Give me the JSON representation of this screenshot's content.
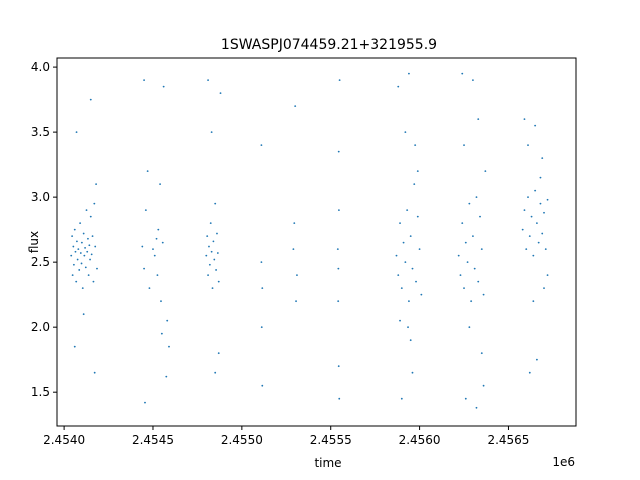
{
  "chart_data": {
    "type": "scatter",
    "title": "1SWASPJ074459.21+321955.9",
    "xlabel": "time",
    "ylabel": "flux",
    "x_offset_label": "1e6",
    "xlim": [
      2453960,
      2456880
    ],
    "ylim": [
      1.24,
      4.07
    ],
    "x_ticks": [
      2454000,
      2454500,
      2455000,
      2455500,
      2456000,
      2456500
    ],
    "x_tick_labels": [
      "2.4540",
      "2.4545",
      "2.4550",
      "2.4555",
      "2.4560",
      "2.4565"
    ],
    "y_ticks": [
      1.5,
      2.0,
      2.5,
      3.0,
      3.5,
      4.0
    ],
    "y_tick_labels": [
      "1.5",
      "2.0",
      "2.5",
      "3.0",
      "3.5",
      "4.0"
    ],
    "grid": false,
    "marker_color": "#1f77b4",
    "series": [
      {
        "points": [
          [
            2454040,
            2.55
          ],
          [
            2454045,
            2.7
          ],
          [
            2454048,
            2.4
          ],
          [
            2454052,
            2.62
          ],
          [
            2454055,
            2.48
          ],
          [
            2454060,
            2.75
          ],
          [
            2454064,
            2.58
          ],
          [
            2454068,
            2.35
          ],
          [
            2454072,
            2.66
          ],
          [
            2454076,
            2.52
          ],
          [
            2454080,
            2.6
          ],
          [
            2454085,
            2.44
          ],
          [
            2454090,
            2.8
          ],
          [
            2454094,
            2.57
          ],
          [
            2454098,
            2.49
          ],
          [
            2454100,
            2.65
          ],
          [
            2454105,
            2.3
          ],
          [
            2454110,
            2.72
          ],
          [
            2454114,
            2.55
          ],
          [
            2454118,
            2.61
          ],
          [
            2454122,
            2.46
          ],
          [
            2454126,
            2.9
          ],
          [
            2454130,
            2.58
          ],
          [
            2454134,
            2.68
          ],
          [
            2454138,
            2.4
          ],
          [
            2454142,
            2.63
          ],
          [
            2454146,
            2.52
          ],
          [
            2454150,
            2.85
          ],
          [
            2454155,
            2.56
          ],
          [
            2454160,
            2.7
          ],
          [
            2454165,
            2.35
          ],
          [
            2454170,
            2.95
          ],
          [
            2454175,
            2.62
          ],
          [
            2454180,
            3.1
          ],
          [
            2454185,
            2.45
          ],
          [
            2454060,
            1.85
          ],
          [
            2454070,
            3.5
          ],
          [
            2454150,
            3.75
          ],
          [
            2454172,
            1.65
          ],
          [
            2454110,
            2.1
          ],
          [
            2454440,
            2.62
          ],
          [
            2454450,
            2.45
          ],
          [
            2454460,
            2.9
          ],
          [
            2454470,
            3.2
          ],
          [
            2454480,
            2.3
          ],
          [
            2454450,
            3.9
          ],
          [
            2454455,
            1.42
          ],
          [
            2454500,
            2.6
          ],
          [
            2454510,
            2.55
          ],
          [
            2454520,
            2.68
          ],
          [
            2454525,
            2.4
          ],
          [
            2454530,
            2.75
          ],
          [
            2454540,
            3.1
          ],
          [
            2454545,
            2.2
          ],
          [
            2454550,
            1.95
          ],
          [
            2454555,
            2.65
          ],
          [
            2454560,
            3.85
          ],
          [
            2454575,
            1.62
          ],
          [
            2454580,
            2.05
          ],
          [
            2454590,
            1.85
          ],
          [
            2454800,
            2.55
          ],
          [
            2454805,
            2.7
          ],
          [
            2454810,
            2.4
          ],
          [
            2454815,
            2.62
          ],
          [
            2454820,
            2.48
          ],
          [
            2454825,
            2.8
          ],
          [
            2454830,
            2.58
          ],
          [
            2454835,
            2.3
          ],
          [
            2454840,
            2.66
          ],
          [
            2454845,
            2.52
          ],
          [
            2454850,
            2.95
          ],
          [
            2454855,
            2.44
          ],
          [
            2454860,
            2.72
          ],
          [
            2454865,
            2.57
          ],
          [
            2454870,
            2.35
          ],
          [
            2454810,
            3.9
          ],
          [
            2454830,
            3.5
          ],
          [
            2454850,
            1.65
          ],
          [
            2454870,
            1.8
          ],
          [
            2454880,
            3.8
          ],
          [
            2455110,
            2.5
          ],
          [
            2455115,
            2.3
          ],
          [
            2455110,
            3.4
          ],
          [
            2455115,
            1.55
          ],
          [
            2455112,
            2.0
          ],
          [
            2455290,
            2.6
          ],
          [
            2455300,
            3.7
          ],
          [
            2455310,
            2.4
          ],
          [
            2455295,
            2.8
          ],
          [
            2455305,
            2.2
          ],
          [
            2455540,
            2.6
          ],
          [
            2455545,
            3.35
          ],
          [
            2455548,
            1.45
          ],
          [
            2455542,
            2.2
          ],
          [
            2455546,
            2.9
          ],
          [
            2455550,
            3.9
          ],
          [
            2455545,
            1.7
          ],
          [
            2455543,
            2.45
          ],
          [
            2455870,
            2.55
          ],
          [
            2455880,
            2.4
          ],
          [
            2455890,
            2.8
          ],
          [
            2455900,
            2.3
          ],
          [
            2455910,
            2.65
          ],
          [
            2455920,
            2.5
          ],
          [
            2455930,
            2.9
          ],
          [
            2455940,
            2.2
          ],
          [
            2455950,
            2.7
          ],
          [
            2455960,
            2.45
          ],
          [
            2455970,
            3.1
          ],
          [
            2455980,
            2.35
          ],
          [
            2455990,
            2.85
          ],
          [
            2456000,
            2.6
          ],
          [
            2456010,
            2.25
          ],
          [
            2455880,
            3.85
          ],
          [
            2455900,
            1.45
          ],
          [
            2455940,
            3.95
          ],
          [
            2455960,
            1.65
          ],
          [
            2455920,
            3.5
          ],
          [
            2455950,
            1.9
          ],
          [
            2455990,
            3.2
          ],
          [
            2455890,
            2.05
          ],
          [
            2455935,
            2.0
          ],
          [
            2455975,
            3.4
          ],
          [
            2456220,
            2.55
          ],
          [
            2456230,
            2.4
          ],
          [
            2456240,
            2.8
          ],
          [
            2456250,
            2.3
          ],
          [
            2456260,
            2.65
          ],
          [
            2456270,
            2.5
          ],
          [
            2456280,
            2.95
          ],
          [
            2456290,
            2.2
          ],
          [
            2456300,
            2.7
          ],
          [
            2456310,
            2.45
          ],
          [
            2456320,
            3.0
          ],
          [
            2456330,
            2.35
          ],
          [
            2456340,
            2.85
          ],
          [
            2456350,
            2.6
          ],
          [
            2456360,
            2.25
          ],
          [
            2456240,
            3.95
          ],
          [
            2456260,
            1.45
          ],
          [
            2456300,
            3.9
          ],
          [
            2456320,
            1.38
          ],
          [
            2456330,
            3.6
          ],
          [
            2456350,
            1.8
          ],
          [
            2456370,
            3.2
          ],
          [
            2456280,
            2.0
          ],
          [
            2456360,
            1.55
          ],
          [
            2456250,
            3.4
          ],
          [
            2456580,
            2.75
          ],
          [
            2456590,
            2.9
          ],
          [
            2456600,
            2.6
          ],
          [
            2456610,
            3.0
          ],
          [
            2456620,
            2.7
          ],
          [
            2456630,
            2.85
          ],
          [
            2456640,
            2.55
          ],
          [
            2456650,
            3.05
          ],
          [
            2456660,
            2.8
          ],
          [
            2456670,
            2.65
          ],
          [
            2456680,
            2.95
          ],
          [
            2456690,
            2.72
          ],
          [
            2456700,
            2.88
          ],
          [
            2456710,
            2.6
          ],
          [
            2456720,
            2.98
          ],
          [
            2456590,
            3.6
          ],
          [
            2456620,
            1.65
          ],
          [
            2456650,
            3.55
          ],
          [
            2456660,
            1.75
          ],
          [
            2456690,
            3.3
          ],
          [
            2456700,
            2.3
          ],
          [
            2456610,
            3.4
          ],
          [
            2456640,
            2.2
          ],
          [
            2456720,
            2.4
          ],
          [
            2456680,
            3.15
          ]
        ]
      }
    ]
  }
}
